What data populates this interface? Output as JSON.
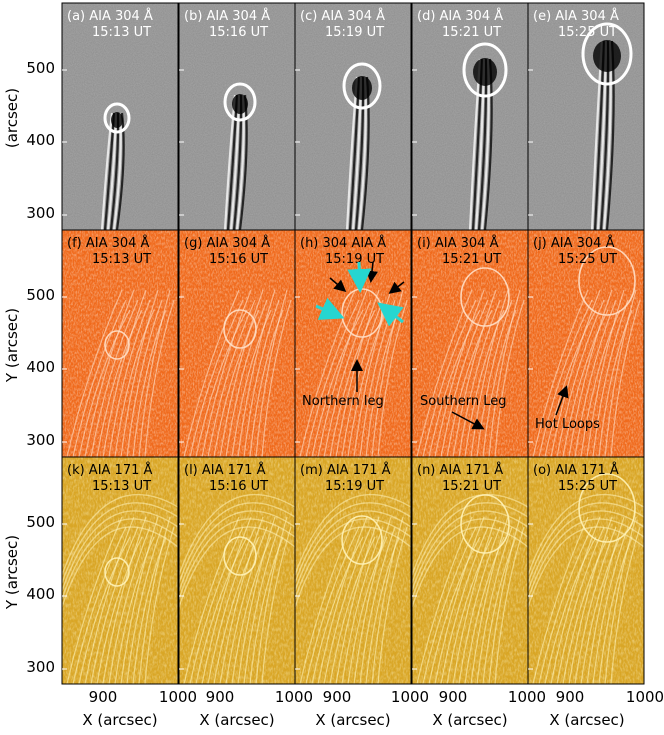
{
  "figure": {
    "rows": [
      {
        "id": "row-a",
        "ylabel": "(arcsec)",
        "scheme": "gray",
        "panels": [
          {
            "tag": "(a)",
            "channel": "AIA 304 Å",
            "time": "15:13 UT"
          },
          {
            "tag": "(b)",
            "channel": "AIA 304 Å",
            "time": "15:16 UT"
          },
          {
            "tag": "(c)",
            "channel": "AIA 304 Å",
            "time": "15:19 UT"
          },
          {
            "tag": "(d)",
            "channel": "AIA 304 Å",
            "time": "15:21 UT"
          },
          {
            "tag": "(e)",
            "channel": "AIA 304 Å",
            "time": "15:25 UT"
          }
        ]
      },
      {
        "id": "row-f",
        "ylabel": "Y (arcsec)",
        "scheme": "orange",
        "panels": [
          {
            "tag": "(f)",
            "channel": "AIA 304 Å",
            "time": "15:13 UT"
          },
          {
            "tag": "(g)",
            "channel": "AIA 304 Å",
            "time": "15:16 UT"
          },
          {
            "tag": "(h)",
            "channel": "304 AIA Å",
            "time": "15:19 UT"
          },
          {
            "tag": "(i)",
            "channel": "AIA 304 Å",
            "time": "15:21 UT"
          },
          {
            "tag": "(j)",
            "channel": "AIA 304 Å",
            "time": "15:25 UT"
          }
        ]
      },
      {
        "id": "row-k",
        "ylabel": "Y (arcsec)",
        "scheme": "yellow",
        "panels": [
          {
            "tag": "(k)",
            "channel": "AIA 171 Å",
            "time": "15:13 UT"
          },
          {
            "tag": "(l)",
            "channel": "AIA 171 Å",
            "time": "15:16 UT"
          },
          {
            "tag": "(m)",
            "channel": "AIA 171 Å",
            "time": "15:19 UT"
          },
          {
            "tag": "(n)",
            "channel": "AIA 171 Å",
            "time": "15:21 UT"
          },
          {
            "tag": "(o)",
            "channel": "AIA 171 Å",
            "time": "15:25 UT"
          }
        ]
      }
    ],
    "yticks": [
      "500",
      "400",
      "300"
    ],
    "xticks": [
      "900",
      "1000"
    ],
    "xlabel": "X (arcsec)",
    "annotations": {
      "northern_leg": "Northern leg",
      "southern_leg": "Southern Leg",
      "hot_loops": "Hot Loops"
    },
    "colors": {
      "gray_bg": "#8c8c8c",
      "orange_bg": "#f06a1c",
      "yellow_bg": "#d9a626",
      "cyan_arrow": "#26d6d0"
    }
  }
}
